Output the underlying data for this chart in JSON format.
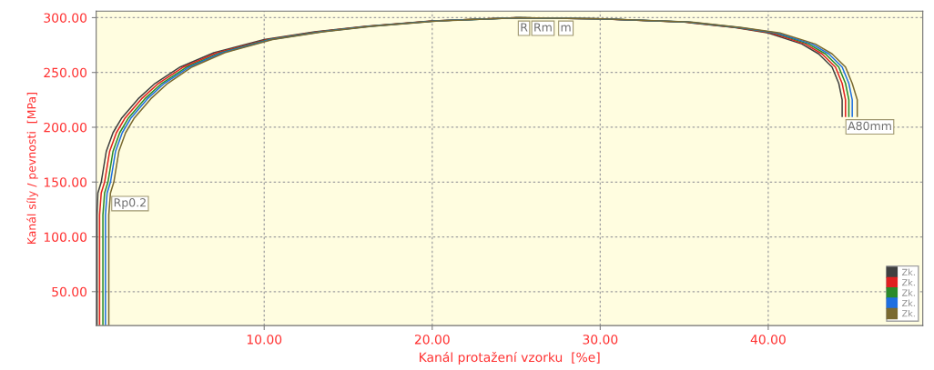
{
  "chart_data": {
    "type": "line",
    "xlabel": "Kanál protažení vzorku  [%e]",
    "ylabel": "Kanál síly / pevnosti  [MPa]",
    "xlim": [
      0,
      49.2
    ],
    "ylim": [
      19,
      306
    ],
    "xticks": [
      {
        "value": 10,
        "label": "10.00"
      },
      {
        "value": 20,
        "label": "20.00"
      },
      {
        "value": 30,
        "label": "30.00"
      },
      {
        "value": 40,
        "label": "40.00"
      }
    ],
    "yticks": [
      {
        "value": 50,
        "label": "50.00"
      },
      {
        "value": 100,
        "label": "100.00"
      },
      {
        "value": 150,
        "label": "150.00"
      },
      {
        "value": 200,
        "label": "200.00"
      },
      {
        "value": 250,
        "label": "250.00"
      },
      {
        "value": 300,
        "label": "300.00"
      }
    ],
    "grid": true,
    "legend": "bottom right",
    "marker": "none",
    "line_style": "solid",
    "annotations": [
      {
        "text": "Rp0.2",
        "x": 0.8,
        "y": 140
      },
      {
        "text": "R",
        "x": 25.0,
        "y": 300
      },
      {
        "text": "Rm",
        "x": 25.8,
        "y": 300
      },
      {
        "text": "m",
        "x": 27.4,
        "y": 300
      },
      {
        "text": "A80mm",
        "x": 44.5,
        "y": 210
      }
    ],
    "series": [
      {
        "name": "Zk.",
        "color": "#404040",
        "x": [
          0.05,
          0.05,
          0.1,
          0.3,
          0.6,
          1.0,
          1.5,
          2.5,
          3.5,
          5,
          7,
          10,
          13,
          16,
          20,
          25,
          30,
          35,
          38,
          40,
          42,
          43,
          43.8,
          44.2,
          44.4,
          44.4
        ],
        "values": [
          20,
          120,
          140,
          150,
          178,
          195,
          208,
          226,
          240,
          255,
          268,
          280,
          287,
          292,
          297,
          300,
          299,
          296,
          291,
          286,
          276,
          267,
          255,
          240,
          225,
          210
        ]
      },
      {
        "name": "Zk.",
        "color": "#e02020",
        "x": [
          0.2,
          0.2,
          0.3,
          0.5,
          0.8,
          1.2,
          1.7,
          2.7,
          3.7,
          5.2,
          7.2,
          10.2,
          13.2,
          16.1,
          20.1,
          25,
          30,
          35.1,
          38.1,
          40.2,
          42.2,
          43.2,
          44,
          44.4,
          44.6,
          44.6
        ],
        "values": [
          20,
          120,
          140,
          150,
          178,
          195,
          208,
          226,
          240,
          255,
          268,
          280,
          287,
          292,
          297,
          300,
          299,
          296,
          291,
          286,
          276,
          267,
          255,
          240,
          225,
          210
        ]
      },
      {
        "name": "Zk.",
        "color": "#2a8a2a",
        "x": [
          0.4,
          0.4,
          0.5,
          0.7,
          1.0,
          1.4,
          1.9,
          2.9,
          3.9,
          5.4,
          7.4,
          10.3,
          13.3,
          16.2,
          20.2,
          25.1,
          30.1,
          35.2,
          38.2,
          40.4,
          42.4,
          43.4,
          44.2,
          44.6,
          44.8,
          44.8
        ],
        "values": [
          20,
          120,
          140,
          150,
          178,
          195,
          208,
          226,
          240,
          255,
          268,
          280,
          287,
          292,
          297,
          300,
          299,
          296,
          291,
          286,
          276,
          267,
          255,
          240,
          225,
          210
        ]
      },
      {
        "name": "Zk.",
        "color": "#1e6fe0",
        "x": [
          0.55,
          0.55,
          0.65,
          0.85,
          1.15,
          1.55,
          2.05,
          3.05,
          4.05,
          5.55,
          7.5,
          10.4,
          13.4,
          16.3,
          20.3,
          25.1,
          30.1,
          35.3,
          38.3,
          40.5,
          42.6,
          43.6,
          44.4,
          44.8,
          45.0,
          45.0
        ],
        "values": [
          20,
          120,
          140,
          150,
          178,
          195,
          208,
          226,
          240,
          255,
          268,
          280,
          287,
          292,
          297,
          300,
          299,
          296,
          291,
          286,
          276,
          267,
          255,
          240,
          225,
          210
        ]
      },
      {
        "name": "Zk.",
        "color": "#7a6a30",
        "x": [
          0.75,
          0.75,
          0.85,
          1.05,
          1.35,
          1.75,
          2.25,
          3.25,
          4.25,
          5.7,
          7.65,
          10.5,
          13.5,
          16.4,
          20.4,
          25.2,
          30.2,
          35.4,
          38.4,
          40.7,
          42.8,
          43.8,
          44.6,
          45.0,
          45.3,
          45.3
        ],
        "values": [
          20,
          120,
          140,
          150,
          178,
          195,
          208,
          226,
          240,
          255,
          268,
          280,
          287,
          292,
          297,
          300,
          299,
          296,
          291,
          286,
          276,
          267,
          255,
          240,
          225,
          210
        ]
      }
    ]
  }
}
